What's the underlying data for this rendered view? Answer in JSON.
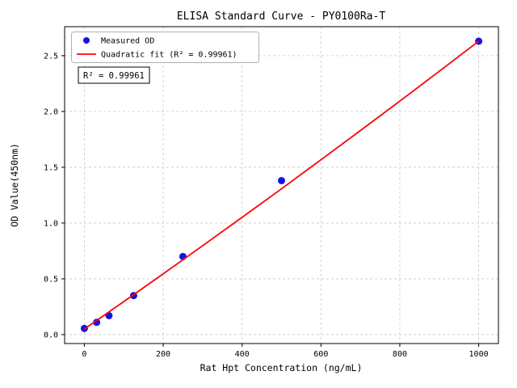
{
  "figure": {
    "title": "ELISA Standard Curve - PY0100Ra-T",
    "annotation_label": "R² = 0.99961"
  },
  "chart_data": {
    "type": "scatter",
    "title": "ELISA Standard Curve - PY0100Ra-T",
    "xlabel": "Rat Hpt Concentration (ng/mL)",
    "ylabel": "OD Value(450nm)",
    "xlim": [
      -50,
      1050
    ],
    "ylim": [
      -0.08,
      2.76
    ],
    "xticks": [
      0,
      200,
      400,
      600,
      800,
      1000
    ],
    "xtick_labels": [
      "0",
      "200",
      "400",
      "600",
      "800",
      "1000"
    ],
    "yticks": [
      0.0,
      0.5,
      1.0,
      1.5,
      2.0,
      2.5
    ],
    "ytick_labels": [
      "0.0",
      "0.5",
      "1.0",
      "1.5",
      "2.0",
      "2.5"
    ],
    "grid": true,
    "grid_style": "dashed",
    "legend_position": "upper left",
    "colors": {
      "measured": "#1414e0",
      "fit": "#ff0000",
      "grid": "#c8c8c8",
      "legend_border": "#b0b0b0"
    },
    "series": [
      {
        "name": "Measured OD",
        "kind": "scatter",
        "color": "#1414e0",
        "x": [
          0,
          31.25,
          62.5,
          125,
          250,
          500,
          1000
        ],
        "y": [
          0.055,
          0.11,
          0.17,
          0.35,
          0.7,
          1.38,
          2.63
        ]
      },
      {
        "name": "Quadratic fit (R² = 0.99961)",
        "kind": "line",
        "color": "#ff0000",
        "x": [
          0,
          100,
          200,
          300,
          400,
          500,
          600,
          700,
          800,
          900,
          1000
        ],
        "y": [
          0.05,
          0.296,
          0.545,
          0.797,
          1.051,
          1.307,
          1.567,
          1.829,
          2.093,
          2.36,
          2.63
        ]
      }
    ],
    "annotation": {
      "text": "R² = 0.99961",
      "x": 30,
      "y": 2.42
    },
    "r_squared": 0.99961
  }
}
